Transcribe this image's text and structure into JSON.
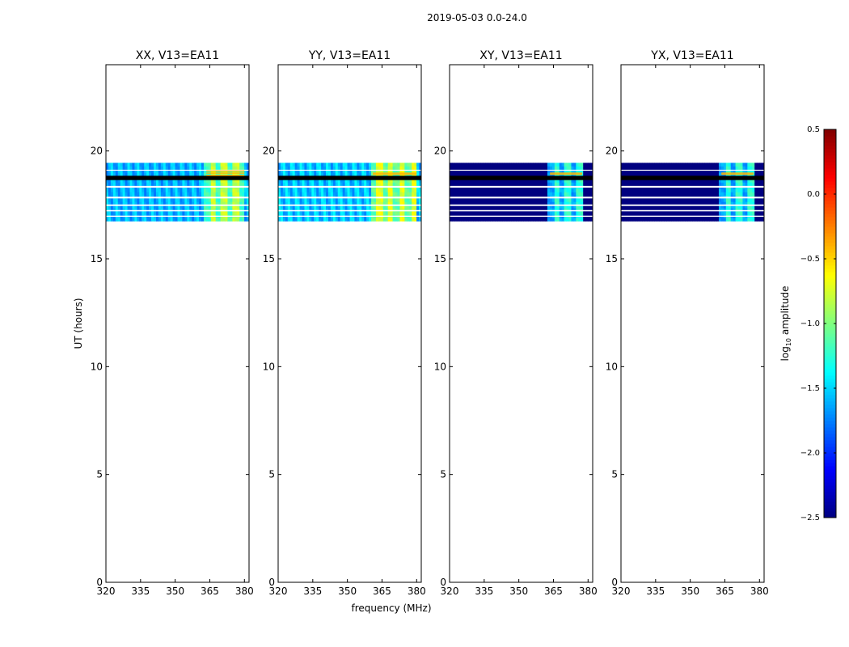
{
  "suptitle": "2019-05-03 0.0-24.0",
  "xlabel": "frequency (MHz)",
  "ylabel": "UT (hours)",
  "colorbar": {
    "label_prefix": "log",
    "label_sub": "10",
    "label_suffix": " amplitude",
    "min": -2.5,
    "max": 0.5,
    "ticks": [
      -2.5,
      -2.0,
      -1.5,
      -1.0,
      -0.5,
      0.0,
      0.5
    ],
    "tick_labels": [
      "−2.5",
      "−2.0",
      "−1.5",
      "−1.0",
      "−0.5",
      "0.0",
      "0.5"
    ],
    "colormap": "jet"
  },
  "chart_data": [
    {
      "type": "heatmap",
      "title": "XX, V13=EA11",
      "xlim": [
        320,
        382
      ],
      "ylim": [
        0,
        24
      ],
      "xticks": [
        320,
        335,
        350,
        365,
        380
      ],
      "yticks": [
        0,
        5,
        10,
        15,
        20
      ],
      "data_time_range": [
        16.75,
        19.45
      ],
      "base_log_amplitude": -1.6,
      "base_ripple": 0.18,
      "band_range_mhz": [
        362.5,
        380
      ],
      "band_log_amplitude": -0.95,
      "gaps_hours": [
        [
          18.65,
          18.85
        ],
        [
          18.3,
          18.38
        ],
        [
          17.8,
          17.88
        ],
        [
          17.45,
          17.52
        ],
        [
          17.2,
          17.26
        ],
        [
          16.95,
          17.0
        ],
        [
          19.1,
          19.13
        ]
      ],
      "gap_style": "white",
      "spot_hours": [
        19.1,
        19.0,
        18.9
      ]
    },
    {
      "type": "heatmap",
      "title": "YY, V13=EA11",
      "xlim": [
        320,
        382
      ],
      "ylim": [
        0,
        24
      ],
      "xticks": [
        320,
        335,
        350,
        365,
        380
      ],
      "yticks": [
        0,
        5,
        10,
        15,
        20
      ],
      "data_time_range": [
        16.75,
        19.45
      ],
      "base_log_amplitude": -1.55,
      "base_ripple": 0.2,
      "band_range_mhz": [
        360,
        380
      ],
      "band_log_amplitude": -0.85,
      "gaps_hours": [
        [
          18.65,
          18.85
        ],
        [
          18.3,
          18.38
        ],
        [
          17.8,
          17.88
        ],
        [
          17.45,
          17.52
        ],
        [
          17.2,
          17.26
        ],
        [
          16.95,
          17.0
        ],
        [
          19.1,
          19.13
        ]
      ],
      "gap_style": "white",
      "spot_hours": [
        19.0,
        18.95
      ]
    },
    {
      "type": "heatmap",
      "title": "XY, V13=EA11",
      "xlim": [
        320,
        382
      ],
      "ylim": [
        0,
        24
      ],
      "xticks": [
        320,
        335,
        350,
        365,
        380
      ],
      "yticks": [
        0,
        5,
        10,
        15,
        20
      ],
      "data_time_range": [
        16.75,
        19.45
      ],
      "base_log_amplitude": -2.5,
      "base_ripple": 0.0,
      "band_range_mhz": [
        362.5,
        377.5
      ],
      "band_log_amplitude": -1.4,
      "gaps_hours": [
        [
          18.65,
          18.85
        ],
        [
          18.3,
          18.38
        ],
        [
          17.8,
          17.88
        ],
        [
          17.45,
          17.52
        ],
        [
          17.2,
          17.26
        ],
        [
          16.95,
          17.0
        ],
        [
          19.1,
          19.13
        ]
      ],
      "gap_style": "white",
      "spot_hours": [
        19.0,
        18.95
      ]
    },
    {
      "type": "heatmap",
      "title": "YX, V13=EA11",
      "xlim": [
        320,
        382
      ],
      "ylim": [
        0,
        24
      ],
      "xticks": [
        320,
        335,
        350,
        365,
        380
      ],
      "yticks": [
        0,
        5,
        10,
        15,
        20
      ],
      "data_time_range": [
        16.75,
        19.45
      ],
      "base_log_amplitude": -2.5,
      "base_ripple": 0.0,
      "band_range_mhz": [
        362.5,
        377.5
      ],
      "band_log_amplitude": -1.4,
      "gaps_hours": [
        [
          18.65,
          18.85
        ],
        [
          18.3,
          18.38
        ],
        [
          17.8,
          17.88
        ],
        [
          17.45,
          17.52
        ],
        [
          17.2,
          17.26
        ],
        [
          16.95,
          17.0
        ],
        [
          19.1,
          19.13
        ]
      ],
      "gap_style": "white",
      "spot_hours": [
        19.0,
        18.95
      ]
    }
  ]
}
